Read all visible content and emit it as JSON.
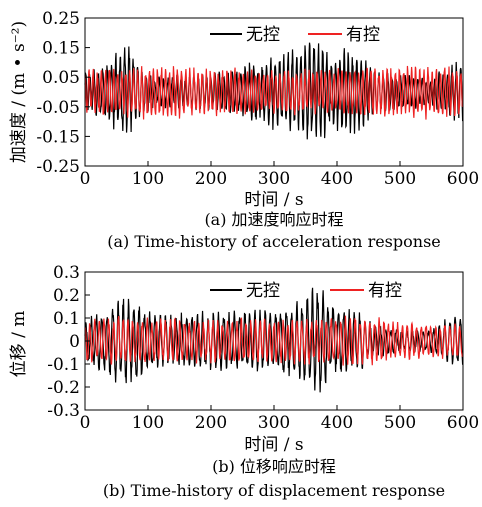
{
  "chart_data": [
    {
      "type": "line",
      "caption_cn": "(a) 加速度响应时程",
      "caption_en": "(a) Time-history of acceleration response",
      "xlabel": "时间 / s",
      "ylabel": "加速度 / (m • s⁻²)",
      "xlim": [
        0,
        600
      ],
      "ylim": [
        -0.25,
        0.25
      ],
      "xticks": [
        0,
        100,
        200,
        300,
        400,
        500,
        600
      ],
      "yticks": [
        -0.25,
        -0.15,
        -0.05,
        0.05,
        0.15,
        0.25
      ],
      "ytick_labels": [
        "-0.25",
        "-0.15",
        "-0.05",
        "0.05",
        "0.15",
        "0.25"
      ],
      "legend": "top-right",
      "grid": false,
      "series": [
        {
          "name": "无控",
          "color": "#000000",
          "envelope_t": [
            0,
            25,
            50,
            65,
            75,
            90,
            110,
            150,
            200,
            250,
            300,
            340,
            360,
            375,
            390,
            410,
            430,
            460,
            500,
            550,
            600
          ],
          "envelope_amp": [
            0.06,
            0.09,
            0.14,
            0.17,
            0.16,
            0.08,
            0.05,
            0.06,
            0.07,
            0.09,
            0.13,
            0.16,
            0.19,
            0.18,
            0.12,
            0.16,
            0.15,
            0.08,
            0.06,
            0.05,
            0.12
          ]
        },
        {
          "name": "有控",
          "color": "#ee2222",
          "envelope_t": [
            0,
            50,
            100,
            150,
            200,
            250,
            300,
            350,
            400,
            450,
            500,
            550,
            600
          ],
          "envelope_amp": [
            0.08,
            0.09,
            0.09,
            0.09,
            0.08,
            0.08,
            0.08,
            0.08,
            0.08,
            0.09,
            0.09,
            0.09,
            0.09
          ]
        }
      ]
    },
    {
      "type": "line",
      "caption_cn": "(b) 位移响应时程",
      "caption_en": "(b) Time-history of displacement response",
      "xlabel": "时间 / s",
      "ylabel": "位移 / m",
      "xlim": [
        0,
        600
      ],
      "ylim": [
        -0.3,
        0.3
      ],
      "xticks": [
        0,
        100,
        200,
        300,
        400,
        500,
        600
      ],
      "yticks": [
        -0.3,
        -0.2,
        -0.1,
        0,
        0.1,
        0.2,
        0.3
      ],
      "ytick_labels": [
        "-0.3",
        "-0.2",
        "-0.1",
        "0",
        "0.1",
        "0.2",
        "0.3"
      ],
      "legend": "top-right",
      "grid": false,
      "series": [
        {
          "name": "无控",
          "color": "#000000",
          "envelope_t": [
            0,
            30,
            60,
            75,
            100,
            150,
            200,
            250,
            300,
            340,
            360,
            375,
            390,
            430,
            460,
            500,
            550,
            600
          ],
          "envelope_amp": [
            0.1,
            0.15,
            0.21,
            0.22,
            0.14,
            0.13,
            0.13,
            0.14,
            0.15,
            0.18,
            0.24,
            0.25,
            0.16,
            0.14,
            0.08,
            0.05,
            0.05,
            0.15
          ]
        },
        {
          "name": "有控",
          "color": "#ee2222",
          "envelope_t": [
            0,
            50,
            100,
            150,
            200,
            250,
            300,
            350,
            400,
            450,
            500,
            550,
            600
          ],
          "envelope_amp": [
            0.1,
            0.11,
            0.11,
            0.1,
            0.1,
            0.1,
            0.1,
            0.11,
            0.11,
            0.11,
            0.09,
            0.08,
            0.08
          ]
        }
      ]
    }
  ]
}
